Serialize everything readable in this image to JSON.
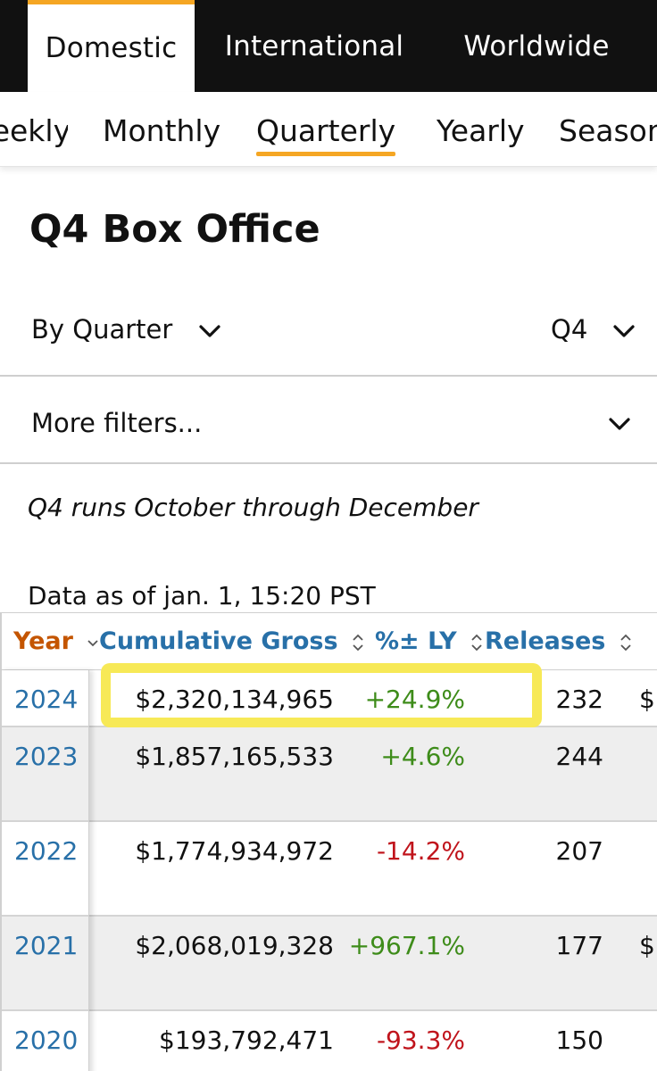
{
  "region_tabs": [
    {
      "label": "Domestic",
      "active": true
    },
    {
      "label": "International",
      "active": false
    },
    {
      "label": "Worldwide",
      "active": false
    }
  ],
  "period_tabs": [
    {
      "label": "Weekly",
      "visible_text": "eekly",
      "active": false
    },
    {
      "label": "Monthly",
      "active": false
    },
    {
      "label": "Quarterly",
      "active": true
    },
    {
      "label": "Yearly",
      "active": false
    },
    {
      "label": "Season",
      "visible_text": "Season",
      "active": false
    }
  ],
  "page_title": "Q4 Box Office",
  "filters": {
    "by_label": "By Quarter",
    "quarter_value": "Q4",
    "more_filters": "More filters..."
  },
  "note": "Q4 runs October through December",
  "data_as_of": "Data as of jan. 1, 15:20 PST",
  "table": {
    "headers": {
      "year": "Year",
      "gross": "Cumulative Gross",
      "pct": "%± LY",
      "releases": "Releases"
    },
    "rows": [
      {
        "year": "2024",
        "gross": "$2,320,134,965",
        "pct": "+24.9%",
        "releases": "232",
        "extra": "$"
      },
      {
        "year": "2023",
        "gross": "$1,857,165,533",
        "pct": "+4.6%",
        "releases": "244",
        "extra": ""
      },
      {
        "year": "2022",
        "gross": "$1,774,934,972",
        "pct": "-14.2%",
        "releases": "207",
        "extra": ""
      },
      {
        "year": "2021",
        "gross": "$2,068,019,328",
        "pct": "+967.1%",
        "releases": "177",
        "extra": "$"
      },
      {
        "year": "2020",
        "gross": "$193,792,471",
        "pct": "-93.3%",
        "releases": "150",
        "extra": ""
      }
    ]
  },
  "colors": {
    "accent": "#f5a623",
    "link": "#2870a8",
    "sorted_header": "#c45500",
    "positive": "#3e8c1a",
    "negative": "#c0141c",
    "highlight": "#f7e957"
  }
}
